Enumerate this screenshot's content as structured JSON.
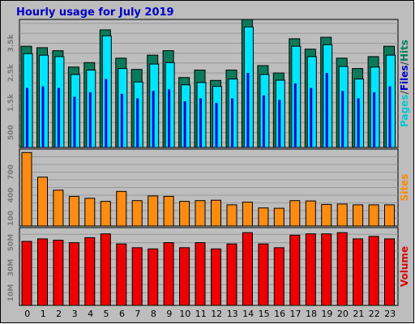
{
  "chart_data": {
    "type": "bar",
    "title": "Hourly usage for July 2019",
    "categories": [
      "0",
      "1",
      "2",
      "3",
      "4",
      "5",
      "6",
      "7",
      "8",
      "9",
      "10",
      "11",
      "12",
      "13",
      "14",
      "15",
      "16",
      "17",
      "18",
      "19",
      "20",
      "21",
      "22",
      "23"
    ],
    "panels": [
      {
        "id": "hits",
        "ylim": [
          0,
          4300
        ],
        "yticks": [
          500,
          1500,
          2500,
          3500
        ],
        "ytick_labels": [
          "500",
          "1.5k",
          "2.5k",
          "3.5k"
        ],
        "ylabel_parts": [
          {
            "text": "Pages",
            "color": "#00c8d8"
          },
          {
            "text": "/",
            "color": "#444444"
          },
          {
            "text": "Files",
            "color": "#0000cc"
          },
          {
            "text": "/",
            "color": "#444444"
          },
          {
            "text": "Hits",
            "color": "#008060"
          }
        ],
        "series": [
          {
            "name": "Hits",
            "color": "#0b7a5a",
            "values": [
              3400,
              3350,
              3250,
              2700,
              2850,
              3950,
              3000,
              2620,
              3100,
              3250,
              2350,
              2600,
              2250,
              2600,
              4300,
              2750,
              2500,
              3650,
              3300,
              3700,
              3000,
              2650,
              3050,
              3400
            ]
          },
          {
            "name": "Files",
            "color": "#00e5ff",
            "values": [
              3150,
              3100,
              3050,
              2450,
              2600,
              3750,
              2650,
              2200,
              2800,
              2850,
              2100,
              2180,
              2050,
              2300,
              4050,
              2450,
              2260,
              3400,
              3050,
              3450,
              2720,
              2300,
              2700,
              3100
            ]
          },
          {
            "name": "Pages",
            "color": "#0000dd",
            "values": [
              2000,
              2050,
              2000,
              1700,
              1850,
              2300,
              1800,
              1650,
              1900,
              1950,
              1550,
              1650,
              1500,
              1650,
              2500,
              1750,
              1600,
              2150,
              2000,
              2500,
              1900,
              1650,
              1850,
              2050
            ]
          }
        ]
      },
      {
        "id": "sites",
        "ylim": [
          0,
          1000
        ],
        "yticks": [
          100,
          400,
          700
        ],
        "ytick_labels": [
          "100",
          "400",
          "700"
        ],
        "ylabel_parts": [
          {
            "text": "Sites",
            "color": "#ff8800"
          }
        ],
        "series": [
          {
            "name": "Sites",
            "color": "#ff8c10",
            "values": [
              955,
              635,
              465,
              385,
              360,
              320,
              450,
              330,
              390,
              385,
              320,
              330,
              335,
              275,
              310,
              235,
              230,
              330,
              325,
              280,
              285,
              275,
              275,
              275
            ]
          }
        ]
      },
      {
        "id": "volume",
        "ylim": [
          0,
          62
        ],
        "yticks": [
          10,
          30,
          50
        ],
        "ytick_labels": [
          "10M",
          "30M",
          "50M"
        ],
        "ylabel_parts": [
          {
            "text": "Volume",
            "color": "#dd0000"
          }
        ],
        "series": [
          {
            "name": "Volume",
            "color": "#ee0000",
            "values": [
              51,
              53,
              52,
              50,
              54,
              57,
              49,
              46,
              45,
              50,
              46,
              50,
              45,
              49,
              58,
              49,
              46,
              56,
              57,
              57,
              58,
              53,
              55,
              53
            ]
          }
        ]
      }
    ]
  }
}
